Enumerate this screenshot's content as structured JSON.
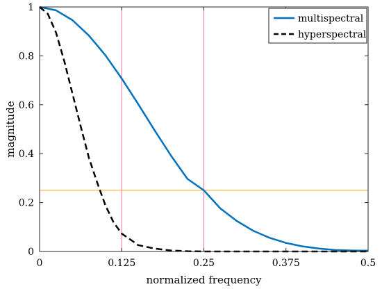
{
  "chart_data": {
    "type": "line",
    "title": "",
    "xlabel": "normalized frequency",
    "ylabel": "magnitude",
    "xlim": [
      0,
      0.5
    ],
    "ylim": [
      0,
      1
    ],
    "x_ticks": [
      0,
      0.125,
      0.25,
      0.375,
      0.5
    ],
    "x_tick_labels": [
      "0",
      "0.125",
      "0.25",
      "0.375",
      "0.5"
    ],
    "y_ticks": [
      0,
      0.2,
      0.4,
      0.6,
      0.8,
      1
    ],
    "y_tick_labels": [
      "0",
      "0.2",
      "0.4",
      "0.6",
      "0.8",
      "1"
    ],
    "grid": false,
    "legend_position": "top-right",
    "series": [
      {
        "name": "multispectral",
        "color": "#0072BD",
        "style": "solid",
        "x": [
          0,
          0.025,
          0.05,
          0.075,
          0.1,
          0.125,
          0.15,
          0.175,
          0.2,
          0.225,
          0.25,
          0.275,
          0.3,
          0.325,
          0.35,
          0.375,
          0.4,
          0.425,
          0.45,
          0.475,
          0.5
        ],
        "y": [
          1.0,
          0.986,
          0.946,
          0.883,
          0.803,
          0.707,
          0.603,
          0.496,
          0.392,
          0.297,
          0.25,
          0.176,
          0.125,
          0.085,
          0.056,
          0.035,
          0.021,
          0.012,
          0.006,
          0.004,
          0.003
        ]
      },
      {
        "name": "hyperspectral",
        "color": "#000000",
        "style": "dashed",
        "x": [
          0,
          0.0125,
          0.025,
          0.0375,
          0.05,
          0.0625,
          0.075,
          0.0875,
          0.1,
          0.1125,
          0.125,
          0.1375,
          0.15,
          0.175,
          0.2,
          0.225,
          0.25,
          0.275,
          0.3,
          0.35,
          0.4,
          0.45,
          0.5
        ],
        "y": [
          1.0,
          0.972,
          0.895,
          0.779,
          0.646,
          0.513,
          0.383,
          0.283,
          0.19,
          0.12,
          0.073,
          0.05,
          0.026,
          0.012,
          0.004,
          0.001,
          0.0,
          0.0,
          0.0,
          0.0,
          0.0,
          0.0,
          0.0
        ]
      }
    ],
    "reference_lines": [
      {
        "orientation": "horizontal",
        "value": 0.25,
        "color": "#EDB120"
      },
      {
        "orientation": "vertical",
        "value": 0.125,
        "color": "#FF6EA0"
      },
      {
        "orientation": "vertical",
        "value": 0.25,
        "color": "#FF6EA0"
      }
    ]
  }
}
